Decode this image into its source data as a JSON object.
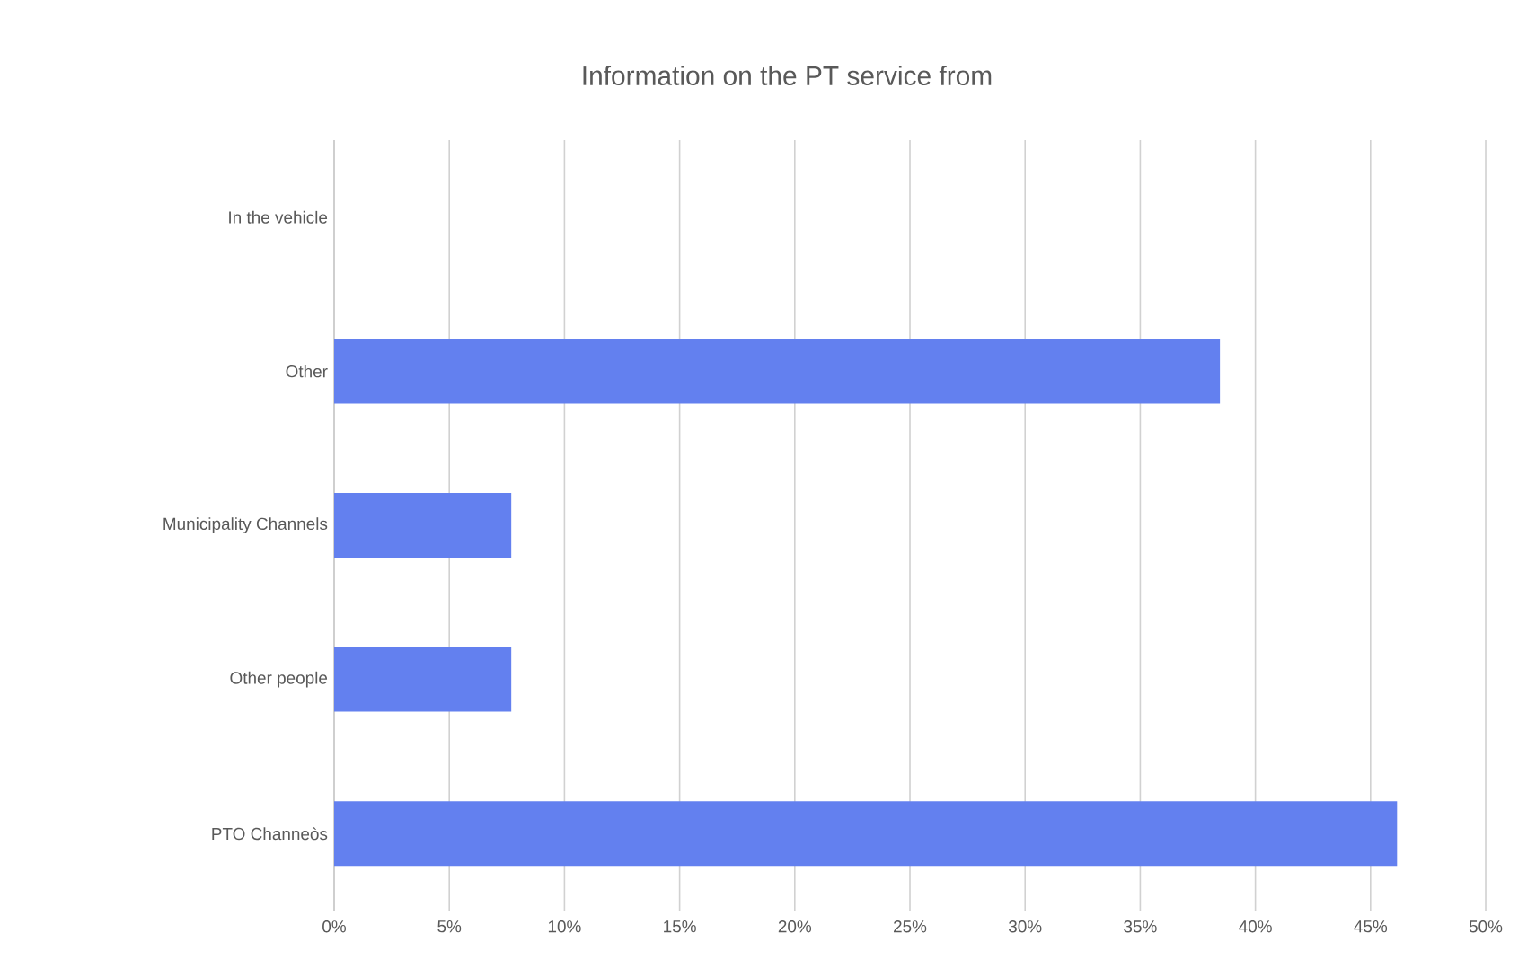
{
  "chart_data": {
    "type": "bar",
    "orientation": "horizontal",
    "title": "Information on the PT service from",
    "categories": [
      "In the vehicle",
      "Other",
      "Municipality Channels",
      "Other people",
      "PTO Channeòs"
    ],
    "values": [
      0,
      38.46,
      7.69,
      7.69,
      46.15
    ],
    "color": "#6380ef",
    "xlim": [
      0,
      50
    ],
    "xticks": [
      {
        "value": 0,
        "label": "0%"
      },
      {
        "value": 5,
        "label": "5%"
      },
      {
        "value": 10,
        "label": "10%"
      },
      {
        "value": 15,
        "label": "15%"
      },
      {
        "value": 20,
        "label": "20%"
      },
      {
        "value": 25,
        "label": "25%"
      },
      {
        "value": 30,
        "label": "30%"
      },
      {
        "value": 35,
        "label": "35%"
      },
      {
        "value": 40,
        "label": "40%"
      },
      {
        "value": 45,
        "label": "45%"
      },
      {
        "value": 50,
        "label": "50%"
      }
    ],
    "grid": "x"
  }
}
